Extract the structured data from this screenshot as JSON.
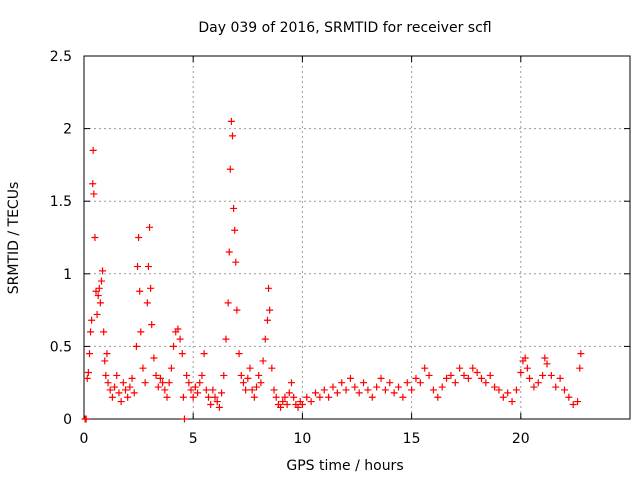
{
  "chart_data": {
    "type": "scatter",
    "title": "Day 039 of 2016, SRMTID for receiver scfl",
    "xlabel": "GPS time / hours",
    "ylabel": "SRMTID / TECUs",
    "xlim": [
      0,
      25
    ],
    "ylim": [
      0,
      2.5
    ],
    "xticks": [
      0,
      5,
      10,
      15,
      20
    ],
    "xtick_labels": [
      "0",
      "5",
      "10",
      "15",
      "20"
    ],
    "yticks": [
      0,
      0.5,
      1,
      1.5,
      2,
      2.5
    ],
    "ytick_labels": [
      "0",
      "0.5",
      "1",
      "1.5",
      "2",
      "2.5"
    ],
    "grid": true,
    "marker": "+",
    "marker_color": "#ff0000",
    "series": [
      {
        "name": "SRMTID",
        "points": [
          [
            0.05,
            0.0
          ],
          [
            0.1,
            0.0
          ],
          [
            0.15,
            0.28
          ],
          [
            0.2,
            0.32
          ],
          [
            0.25,
            0.45
          ],
          [
            0.3,
            0.6
          ],
          [
            0.35,
            0.68
          ],
          [
            0.4,
            1.62
          ],
          [
            0.42,
            1.85
          ],
          [
            0.45,
            1.55
          ],
          [
            0.5,
            1.25
          ],
          [
            0.55,
            0.88
          ],
          [
            0.6,
            0.72
          ],
          [
            0.65,
            0.85
          ],
          [
            0.7,
            0.9
          ],
          [
            0.75,
            0.8
          ],
          [
            0.8,
            0.95
          ],
          [
            0.85,
            1.02
          ],
          [
            0.9,
            0.6
          ],
          [
            0.95,
            0.4
          ],
          [
            1.0,
            0.3
          ],
          [
            1.05,
            0.45
          ],
          [
            1.1,
            0.25
          ],
          [
            1.2,
            0.2
          ],
          [
            1.3,
            0.15
          ],
          [
            1.4,
            0.22
          ],
          [
            1.5,
            0.3
          ],
          [
            1.6,
            0.18
          ],
          [
            1.7,
            0.12
          ],
          [
            1.8,
            0.25
          ],
          [
            1.9,
            0.2
          ],
          [
            2.0,
            0.15
          ],
          [
            2.1,
            0.22
          ],
          [
            2.2,
            0.28
          ],
          [
            2.3,
            0.18
          ],
          [
            2.4,
            0.5
          ],
          [
            2.45,
            1.05
          ],
          [
            2.5,
            1.25
          ],
          [
            2.55,
            0.88
          ],
          [
            2.6,
            0.6
          ],
          [
            2.7,
            0.35
          ],
          [
            2.8,
            0.25
          ],
          [
            2.9,
            0.8
          ],
          [
            2.95,
            1.05
          ],
          [
            3.0,
            1.32
          ],
          [
            3.05,
            0.9
          ],
          [
            3.1,
            0.65
          ],
          [
            3.2,
            0.42
          ],
          [
            3.3,
            0.3
          ],
          [
            3.4,
            0.22
          ],
          [
            3.5,
            0.28
          ],
          [
            3.6,
            0.25
          ],
          [
            3.7,
            0.2
          ],
          [
            3.8,
            0.15
          ],
          [
            3.9,
            0.25
          ],
          [
            4.0,
            0.35
          ],
          [
            4.1,
            0.5
          ],
          [
            4.2,
            0.6
          ],
          [
            4.3,
            0.62
          ],
          [
            4.4,
            0.55
          ],
          [
            4.5,
            0.45
          ],
          [
            4.55,
            0.15
          ],
          [
            4.6,
            0.0
          ],
          [
            4.7,
            0.3
          ],
          [
            4.8,
            0.25
          ],
          [
            4.9,
            0.2
          ],
          [
            5.0,
            0.15
          ],
          [
            5.1,
            0.22
          ],
          [
            5.2,
            0.18
          ],
          [
            5.3,
            0.25
          ],
          [
            5.4,
            0.3
          ],
          [
            5.5,
            0.45
          ],
          [
            5.6,
            0.2
          ],
          [
            5.7,
            0.15
          ],
          [
            5.8,
            0.1
          ],
          [
            5.9,
            0.2
          ],
          [
            6.0,
            0.15
          ],
          [
            6.1,
            0.12
          ],
          [
            6.2,
            0.08
          ],
          [
            6.3,
            0.18
          ],
          [
            6.4,
            0.3
          ],
          [
            6.5,
            0.55
          ],
          [
            6.6,
            0.8
          ],
          [
            6.65,
            1.15
          ],
          [
            6.7,
            1.72
          ],
          [
            6.75,
            2.05
          ],
          [
            6.8,
            1.95
          ],
          [
            6.85,
            1.45
          ],
          [
            6.9,
            1.3
          ],
          [
            6.95,
            1.08
          ],
          [
            7.0,
            0.75
          ],
          [
            7.1,
            0.45
          ],
          [
            7.2,
            0.3
          ],
          [
            7.3,
            0.25
          ],
          [
            7.4,
            0.2
          ],
          [
            7.5,
            0.28
          ],
          [
            7.6,
            0.35
          ],
          [
            7.7,
            0.2
          ],
          [
            7.8,
            0.15
          ],
          [
            7.9,
            0.22
          ],
          [
            8.0,
            0.3
          ],
          [
            8.1,
            0.25
          ],
          [
            8.2,
            0.4
          ],
          [
            8.3,
            0.55
          ],
          [
            8.4,
            0.68
          ],
          [
            8.45,
            0.9
          ],
          [
            8.5,
            0.75
          ],
          [
            8.6,
            0.35
          ],
          [
            8.7,
            0.2
          ],
          [
            8.8,
            0.15
          ],
          [
            8.9,
            0.1
          ],
          [
            9.0,
            0.08
          ],
          [
            9.1,
            0.12
          ],
          [
            9.2,
            0.15
          ],
          [
            9.3,
            0.1
          ],
          [
            9.4,
            0.18
          ],
          [
            9.5,
            0.25
          ],
          [
            9.6,
            0.15
          ],
          [
            9.7,
            0.1
          ],
          [
            9.8,
            0.08
          ],
          [
            9.9,
            0.12
          ],
          [
            10.0,
            0.1
          ],
          [
            10.2,
            0.15
          ],
          [
            10.4,
            0.12
          ],
          [
            10.6,
            0.18
          ],
          [
            10.8,
            0.15
          ],
          [
            11.0,
            0.2
          ],
          [
            11.2,
            0.15
          ],
          [
            11.4,
            0.22
          ],
          [
            11.6,
            0.18
          ],
          [
            11.8,
            0.25
          ],
          [
            12.0,
            0.2
          ],
          [
            12.2,
            0.28
          ],
          [
            12.4,
            0.22
          ],
          [
            12.6,
            0.18
          ],
          [
            12.8,
            0.25
          ],
          [
            13.0,
            0.2
          ],
          [
            13.2,
            0.15
          ],
          [
            13.4,
            0.22
          ],
          [
            13.6,
            0.28
          ],
          [
            13.8,
            0.2
          ],
          [
            14.0,
            0.25
          ],
          [
            14.2,
            0.18
          ],
          [
            14.4,
            0.22
          ],
          [
            14.6,
            0.15
          ],
          [
            14.8,
            0.25
          ],
          [
            15.0,
            0.2
          ],
          [
            15.2,
            0.28
          ],
          [
            15.4,
            0.25
          ],
          [
            15.6,
            0.35
          ],
          [
            15.8,
            0.3
          ],
          [
            16.0,
            0.2
          ],
          [
            16.2,
            0.15
          ],
          [
            16.4,
            0.22
          ],
          [
            16.6,
            0.28
          ],
          [
            16.8,
            0.3
          ],
          [
            17.0,
            0.25
          ],
          [
            17.2,
            0.35
          ],
          [
            17.4,
            0.3
          ],
          [
            17.6,
            0.28
          ],
          [
            17.8,
            0.35
          ],
          [
            18.0,
            0.32
          ],
          [
            18.2,
            0.28
          ],
          [
            18.4,
            0.25
          ],
          [
            18.6,
            0.3
          ],
          [
            18.8,
            0.22
          ],
          [
            19.0,
            0.2
          ],
          [
            19.2,
            0.15
          ],
          [
            19.4,
            0.18
          ],
          [
            19.6,
            0.12
          ],
          [
            19.8,
            0.2
          ],
          [
            20.0,
            0.32
          ],
          [
            20.1,
            0.4
          ],
          [
            20.2,
            0.42
          ],
          [
            20.3,
            0.35
          ],
          [
            20.4,
            0.28
          ],
          [
            20.6,
            0.22
          ],
          [
            20.8,
            0.25
          ],
          [
            21.0,
            0.3
          ],
          [
            21.1,
            0.42
          ],
          [
            21.2,
            0.38
          ],
          [
            21.4,
            0.3
          ],
          [
            21.6,
            0.22
          ],
          [
            21.8,
            0.28
          ],
          [
            22.0,
            0.2
          ],
          [
            22.2,
            0.15
          ],
          [
            22.4,
            0.1
          ],
          [
            22.6,
            0.12
          ],
          [
            22.7,
            0.35
          ],
          [
            22.75,
            0.45
          ]
        ]
      }
    ]
  }
}
